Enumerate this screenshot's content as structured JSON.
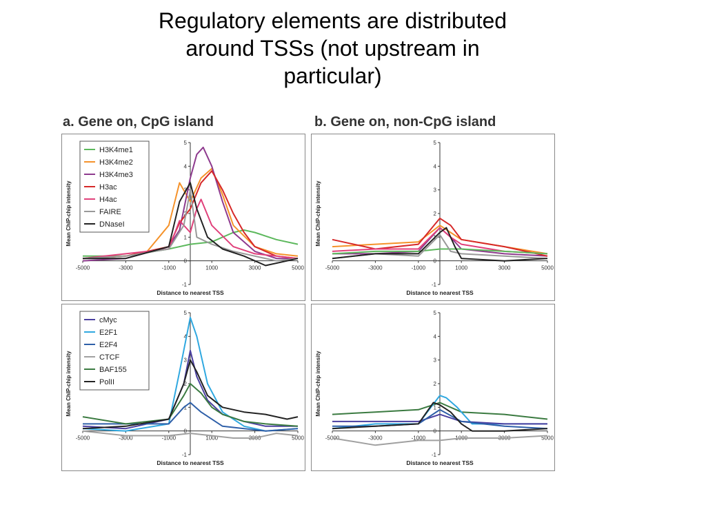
{
  "slide": {
    "title_line1": "Regulatory elements are distributed",
    "title_line2": "around TSSs (not upstream in",
    "title_line3": "particular)"
  },
  "headings": {
    "a": "a. Gene on, CpG island",
    "b": "b. Gene on, non-CpG island"
  },
  "colors": {
    "H3K4me1": "#5cb85c",
    "H3K4me2": "#f5922a",
    "H3K4me3": "#8e3a8e",
    "H3ac": "#d62828",
    "H4ac": "#e0407a",
    "FAIRE": "#999999",
    "DNaseI": "#222222",
    "cMyc": "#4a3fa0",
    "E2F1": "#2fa8e0",
    "E2F4": "#2e5fa8",
    "CTCF": "#a0a0a0",
    "BAF155": "#3a7a40",
    "PolII": "#222222"
  },
  "chart_data": [
    {
      "id": "top-left",
      "type": "line",
      "xlabel": "Distance to nearest TSS",
      "ylabel": "Mean ChIP-chip intensity",
      "xlim": [
        -5000,
        5000
      ],
      "ylim": [
        -1,
        5
      ],
      "xticks": [
        "-5000",
        "-3000",
        "-1000",
        "1000",
        "3000",
        "5000"
      ],
      "yticks": [
        "-1",
        "0",
        "1",
        "2",
        "3",
        "4",
        "5"
      ],
      "legend_position": "top-left",
      "series": [
        {
          "name": "H3K4me1",
          "x": [
            -5000,
            -3000,
            -1000,
            0,
            1000,
            2000,
            2500,
            3000,
            4000,
            5000
          ],
          "y": [
            0.2,
            0.2,
            0.5,
            0.7,
            0.8,
            1.2,
            1.3,
            1.2,
            0.9,
            0.7
          ]
        },
        {
          "name": "H3K4me2",
          "x": [
            -5000,
            -3000,
            -2000,
            -1000,
            -500,
            0,
            500,
            1000,
            1500,
            2000,
            3000,
            4000,
            5000
          ],
          "y": [
            0.1,
            0.2,
            0.4,
            1.5,
            3.3,
            2.5,
            3.5,
            3.9,
            2.8,
            1.5,
            0.6,
            0.3,
            0.2
          ]
        },
        {
          "name": "H3K4me3",
          "x": [
            -5000,
            -3000,
            -1000,
            -500,
            0,
            300,
            600,
            1000,
            1500,
            2000,
            3000,
            4000,
            5000
          ],
          "y": [
            0,
            0.1,
            0.6,
            1.3,
            3.5,
            4.5,
            4.8,
            4,
            2.5,
            1.2,
            0.4,
            0.1,
            0.1
          ]
        },
        {
          "name": "H3ac",
          "x": [
            -5000,
            -3000,
            -1000,
            -500,
            0,
            500,
            1000,
            1500,
            2000,
            2500,
            3000,
            4000,
            5000
          ],
          "y": [
            0.1,
            0.2,
            0.6,
            1.6,
            2.2,
            3.3,
            3.8,
            3.0,
            2.0,
            1.2,
            0.6,
            0.2,
            0.1
          ]
        },
        {
          "name": "H4ac",
          "x": [
            -5000,
            -3000,
            -1000,
            -500,
            0,
            300,
            500,
            1000,
            2000,
            3000,
            4000,
            5000
          ],
          "y": [
            0.1,
            0.3,
            0.5,
            1.7,
            1.2,
            2.2,
            2.6,
            1.5,
            0.6,
            0.3,
            0.2,
            0.1
          ]
        },
        {
          "name": "FAIRE",
          "x": [
            -5000,
            -3000,
            -1000,
            -300,
            0,
            300,
            1000,
            2000,
            3000,
            4000,
            5000
          ],
          "y": [
            0.1,
            0.2,
            0.5,
            1.5,
            3.0,
            1.0,
            0.7,
            0.4,
            0.2,
            0.0,
            0.1
          ]
        },
        {
          "name": "DNaseI",
          "x": [
            -5000,
            -3000,
            -1000,
            -500,
            0,
            300,
            800,
            1500,
            2500,
            3500,
            4500,
            5000
          ],
          "y": [
            0.1,
            0.1,
            0.6,
            2.5,
            3.3,
            2.2,
            1.0,
            0.5,
            0.2,
            -0.2,
            0.0,
            0.1
          ]
        }
      ]
    },
    {
      "id": "top-right",
      "type": "line",
      "xlabel": "Distance to nearest TSS",
      "ylabel": "Mean ChIP-chip intensity",
      "xlim": [
        -5000,
        5000
      ],
      "ylim": [
        -1,
        5
      ],
      "xticks": [
        "-5000",
        "-3000",
        "-1000",
        "1000",
        "3000",
        "5000"
      ],
      "yticks": [
        "-1",
        "0",
        "1",
        "2",
        "3",
        "4",
        "5"
      ],
      "series": [
        {
          "name": "H3K4me2",
          "x": [
            -5000,
            -3000,
            -1000,
            0,
            500,
            1000,
            3000,
            5000
          ],
          "y": [
            0.6,
            0.7,
            0.8,
            1.5,
            1.2,
            0.9,
            0.6,
            0.3
          ]
        },
        {
          "name": "H3K4me3",
          "x": [
            -5000,
            -3000,
            -1000,
            0,
            500,
            1000,
            3000,
            5000
          ],
          "y": [
            0.3,
            0.3,
            0.4,
            1.4,
            1.0,
            0.5,
            0.3,
            0.2
          ]
        },
        {
          "name": "H3ac",
          "x": [
            -5000,
            -3000,
            -1000,
            0,
            500,
            1000,
            3000,
            5000
          ],
          "y": [
            0.9,
            0.5,
            0.7,
            1.8,
            1.5,
            0.9,
            0.6,
            0.2
          ]
        },
        {
          "name": "H4ac",
          "x": [
            -5000,
            -3000,
            -1000,
            0,
            500,
            1000,
            3000,
            5000
          ],
          "y": [
            0.4,
            0.5,
            0.5,
            1.4,
            1.0,
            0.7,
            0.4,
            0.3
          ]
        },
        {
          "name": "H3K4me1",
          "x": [
            -5000,
            -3000,
            -1000,
            0,
            1000,
            3000,
            5000
          ],
          "y": [
            0.3,
            0.4,
            0.4,
            0.5,
            0.5,
            0.4,
            0.3
          ]
        },
        {
          "name": "FAIRE",
          "x": [
            -5000,
            -3000,
            -1000,
            0,
            500,
            1000,
            3000,
            5000
          ],
          "y": [
            0.1,
            0.3,
            0.2,
            1.1,
            0.4,
            0.3,
            0.2,
            0.1
          ]
        },
        {
          "name": "DNaseI",
          "x": [
            -5000,
            -3000,
            -1000,
            0,
            300,
            700,
            1000,
            3000,
            5000
          ],
          "y": [
            0.1,
            0.3,
            0.3,
            1.2,
            1.4,
            0.6,
            0.1,
            0.0,
            0.1
          ]
        }
      ]
    },
    {
      "id": "bottom-left",
      "type": "line",
      "xlabel": "Distance to nearest TSS",
      "ylabel": "Mean ChIP-chip intensity",
      "xlim": [
        -5000,
        5000
      ],
      "ylim": [
        -1,
        5
      ],
      "xticks": [
        "-5000",
        "-3000",
        "-1000",
        "1000",
        "3000",
        "5000"
      ],
      "yticks": [
        "-1",
        "0",
        "1",
        "2",
        "3",
        "4",
        "5"
      ],
      "legend_position": "top-left",
      "series": [
        {
          "name": "cMyc",
          "x": [
            -5000,
            -3000,
            -1000,
            -300,
            0,
            300,
            800,
            1500,
            2500,
            3500,
            5000
          ],
          "y": [
            0.2,
            0.1,
            0.5,
            2.0,
            3.4,
            2.3,
            1.3,
            0.7,
            0.4,
            0.2,
            0.2
          ]
        },
        {
          "name": "E2F1",
          "x": [
            -5000,
            -3000,
            -1000,
            -500,
            0,
            300,
            800,
            1500,
            2500,
            3500,
            5000
          ],
          "y": [
            0.1,
            0.0,
            0.3,
            2.5,
            4.8,
            4.0,
            2.0,
            0.8,
            0.2,
            0.0,
            0.1
          ]
        },
        {
          "name": "E2F4",
          "x": [
            -5000,
            -3000,
            -1000,
            -300,
            0,
            500,
            1500,
            2500,
            3500,
            5000
          ],
          "y": [
            0.3,
            0.3,
            0.3,
            1.0,
            1.2,
            0.8,
            0.2,
            0.1,
            0.0,
            0.1
          ]
        },
        {
          "name": "CTCF",
          "x": [
            -5000,
            -3000,
            -1000,
            0,
            1000,
            2000,
            3000,
            4000,
            5000
          ],
          "y": [
            0.0,
            -0.2,
            -0.2,
            -0.1,
            -0.2,
            -0.3,
            -0.3,
            -0.1,
            -0.2
          ]
        },
        {
          "name": "BAF155",
          "x": [
            -5000,
            -3000,
            -1000,
            -300,
            0,
            500,
            1000,
            1500,
            2500,
            3500,
            5000
          ],
          "y": [
            0.6,
            0.3,
            0.5,
            1.5,
            2.0,
            1.6,
            1.0,
            0.7,
            0.4,
            0.3,
            0.2
          ]
        },
        {
          "name": "PolII",
          "x": [
            -5000,
            -3000,
            -1000,
            -300,
            0,
            300,
            800,
            1500,
            2500,
            3500,
            4500,
            5000
          ],
          "y": [
            0.1,
            0.2,
            0.5,
            2.0,
            3.0,
            2.5,
            1.5,
            1.0,
            0.8,
            0.7,
            0.5,
            0.6
          ]
        }
      ]
    },
    {
      "id": "bottom-right",
      "type": "line",
      "xlabel": "Distance to nearest TSS",
      "ylabel": "Mean ChIP-chip intensity",
      "xlim": [
        -5000,
        5000
      ],
      "ylim": [
        -1,
        5
      ],
      "xticks": [
        "-5000",
        "-3000",
        "-1000",
        "1000",
        "3000",
        "5000"
      ],
      "yticks": [
        "-1",
        "0",
        "1",
        "2",
        "3",
        "4",
        "5"
      ],
      "series": [
        {
          "name": "BAF155",
          "x": [
            -5000,
            -3000,
            -1000,
            0,
            1000,
            3000,
            5000
          ],
          "y": [
            0.7,
            0.8,
            0.9,
            1.2,
            0.8,
            0.7,
            0.5
          ]
        },
        {
          "name": "E2F1",
          "x": [
            -5000,
            -3000,
            -1000,
            0,
            300,
            800,
            1500,
            3000,
            5000
          ],
          "y": [
            0.1,
            0.3,
            0.3,
            1.5,
            1.4,
            1.0,
            0.3,
            0.3,
            0.3
          ]
        },
        {
          "name": "cMyc",
          "x": [
            -5000,
            -3000,
            -1000,
            0,
            1000,
            3000,
            5000
          ],
          "y": [
            0.4,
            0.4,
            0.4,
            0.7,
            0.4,
            0.3,
            0.3
          ]
        },
        {
          "name": "E2F4",
          "x": [
            -5000,
            -3000,
            -1000,
            0,
            1000,
            3000,
            5000
          ],
          "y": [
            0.2,
            0.2,
            0.3,
            0.9,
            0.4,
            0.2,
            0.1
          ]
        },
        {
          "name": "PolII",
          "x": [
            -5000,
            -3000,
            -1000,
            -300,
            0,
            500,
            1000,
            1500,
            3000,
            5000
          ],
          "y": [
            0.1,
            0.2,
            0.3,
            1.2,
            1.1,
            0.8,
            0.3,
            0.0,
            0.0,
            0.1
          ]
        },
        {
          "name": "CTCF",
          "x": [
            -5000,
            -3000,
            -1000,
            0,
            1000,
            3000,
            5000
          ],
          "y": [
            -0.3,
            -0.6,
            -0.4,
            -0.4,
            -0.3,
            -0.3,
            -0.2
          ]
        }
      ]
    }
  ]
}
